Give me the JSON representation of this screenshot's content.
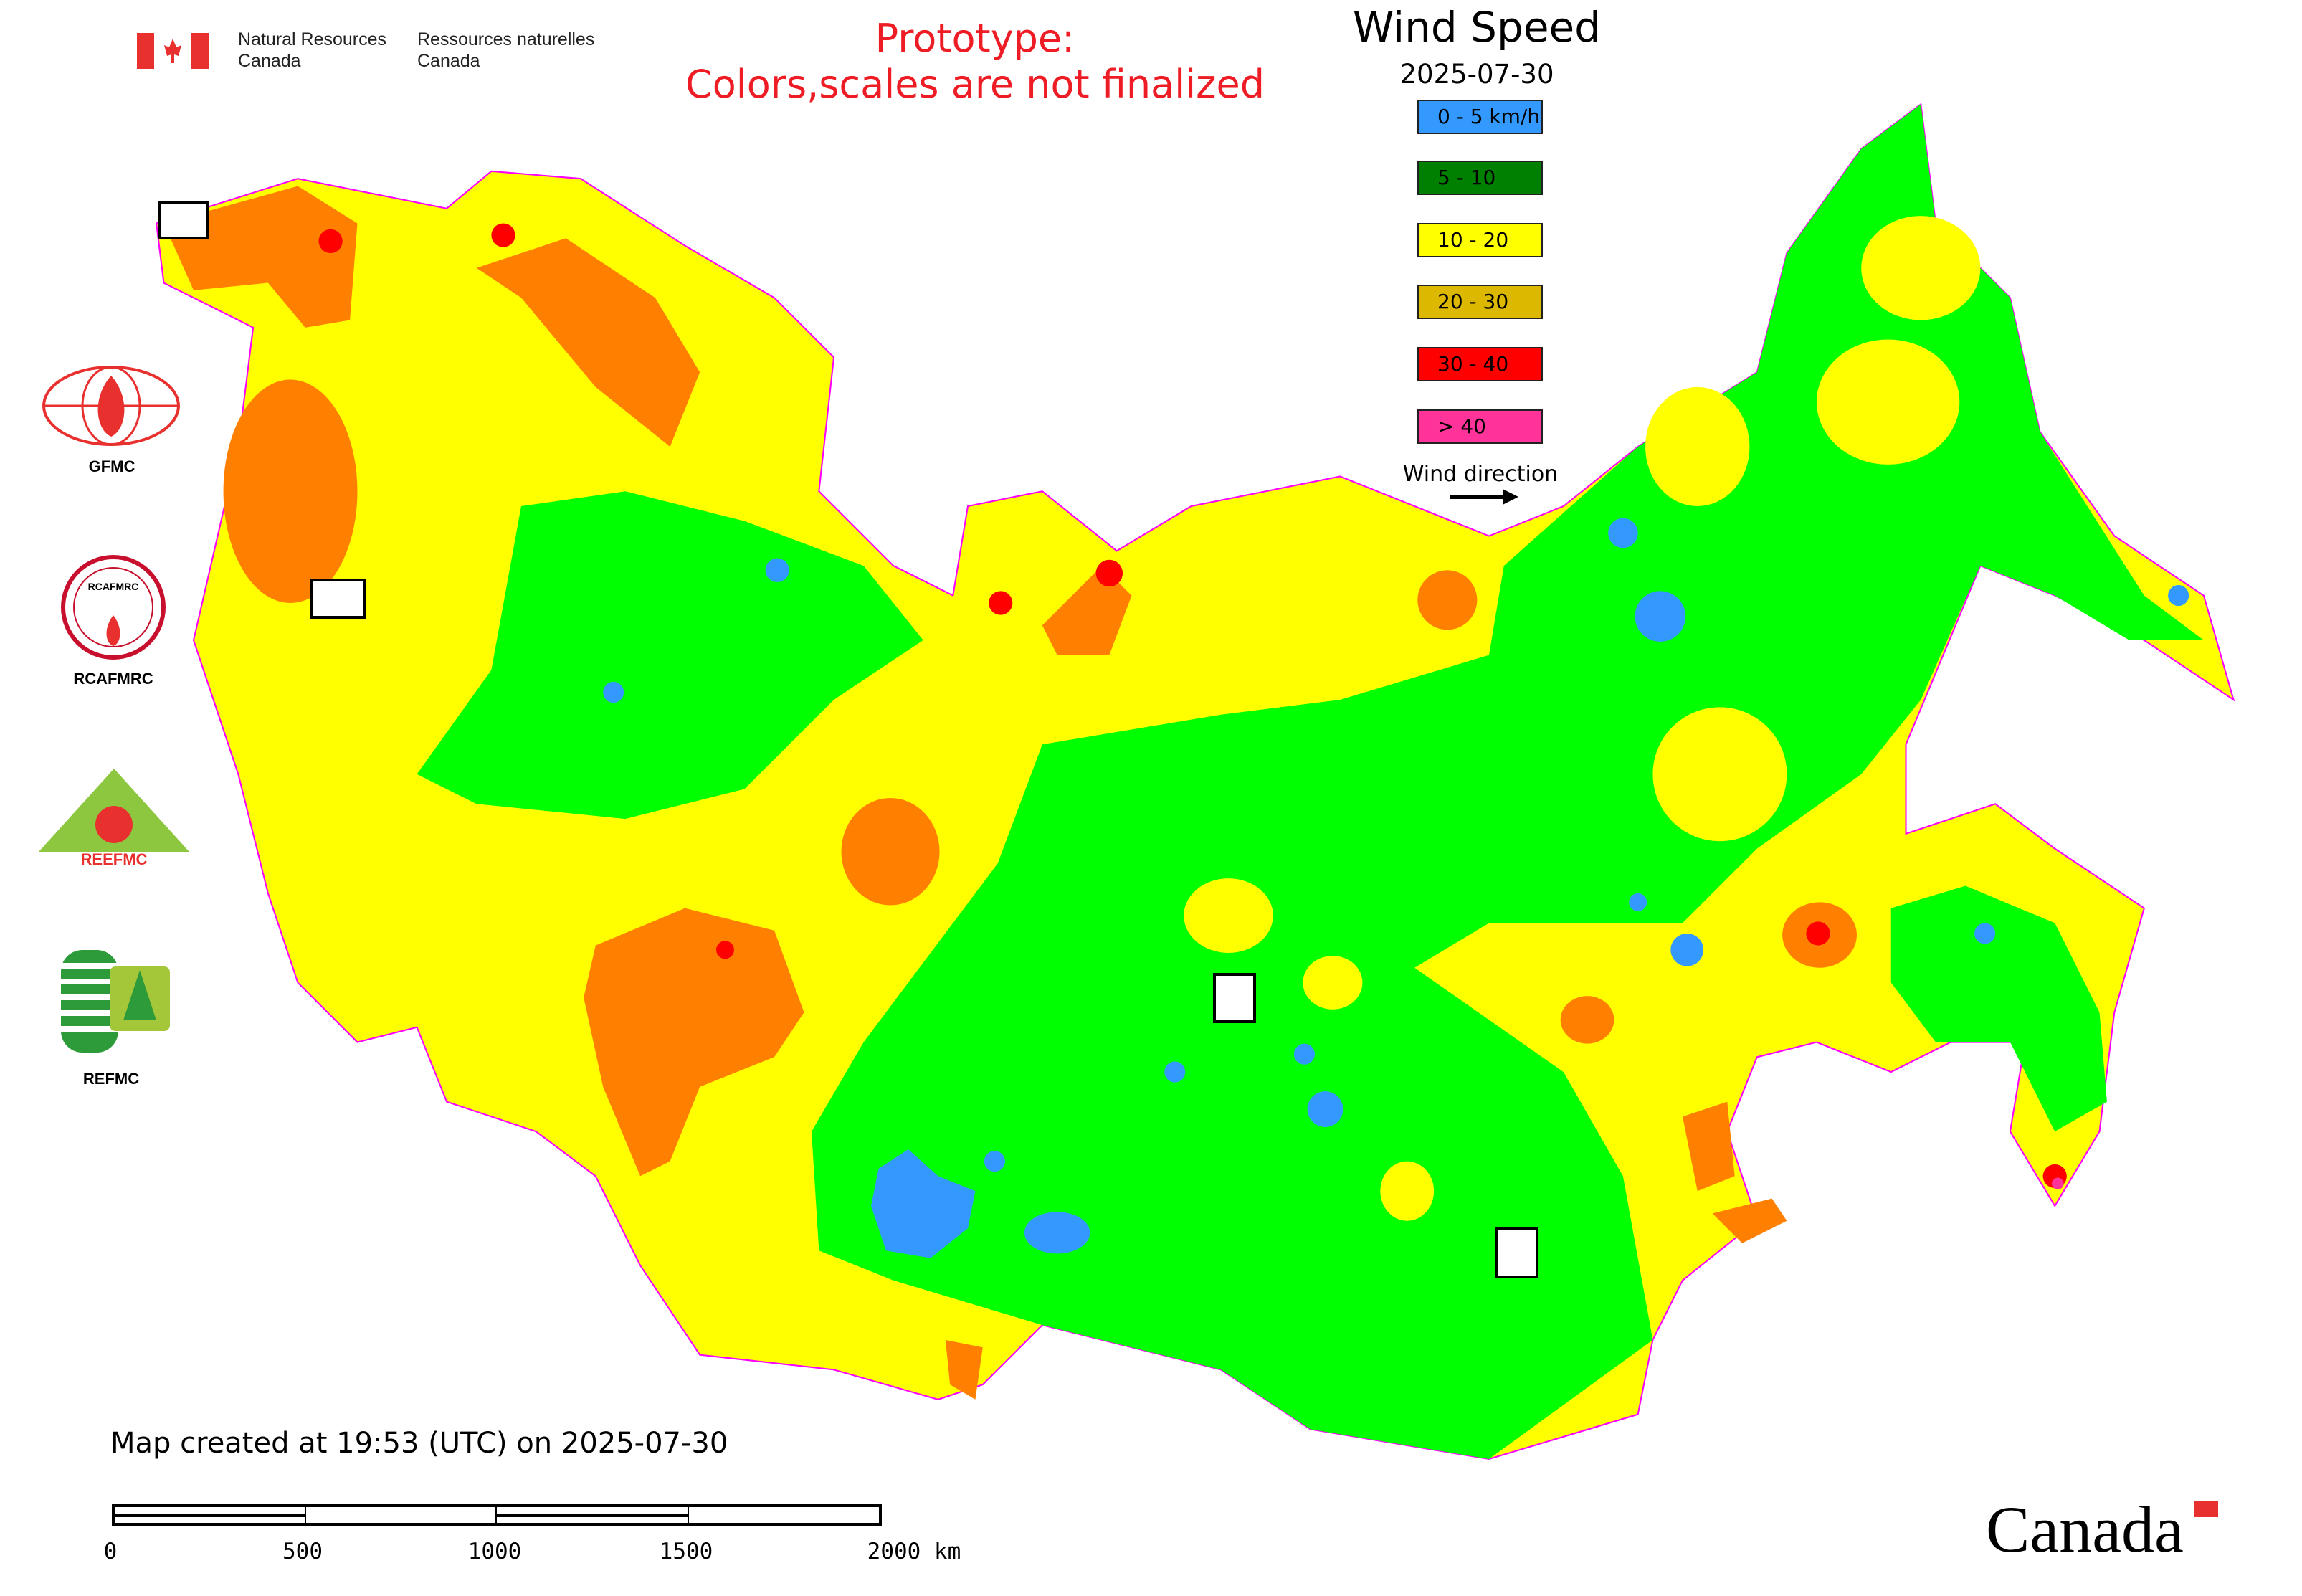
{
  "header": {
    "nrcan_en": [
      "Natural Resources",
      "Canada"
    ],
    "nrcan_fr": [
      "Ressources naturelles",
      "Canada"
    ],
    "notice": [
      "Prototype:",
      "Colors,scales are not finalized"
    ]
  },
  "legend": {
    "title": "Wind Speed",
    "date": "2025-07-30",
    "items": [
      {
        "label": "0 - 5 km/h",
        "color": "#3399ff"
      },
      {
        "label": "5 - 10",
        "color": "#008000"
      },
      {
        "label": "10 - 20",
        "color": "#ffff00"
      },
      {
        "label": "20 - 30",
        "color": "#ddb800"
      },
      {
        "label": "30 - 40",
        "color": "#ff0000"
      },
      {
        "label": "> 40",
        "color": "#ff3399"
      }
    ],
    "wind_direction_label": "Wind direction"
  },
  "map_colors": {
    "land_0_5": "#3399ff",
    "land_5_10": "#00ff00",
    "land_10_20": "#ffff00",
    "land_20_30": "#ff8000",
    "land_30_40": "#ff0000",
    "borders": "#ff00ff"
  },
  "logos": [
    {
      "label": "GFMC"
    },
    {
      "label": "RCAFMRC"
    },
    {
      "label": "REEFMC"
    },
    {
      "label": "REFMC"
    }
  ],
  "footer": {
    "created": "Map created at 19:53 (UTC) on 2025-07-30",
    "scale_labels": [
      "0",
      "500",
      "1000",
      "1500",
      "2000 km"
    ],
    "wordmark": "Canada"
  }
}
